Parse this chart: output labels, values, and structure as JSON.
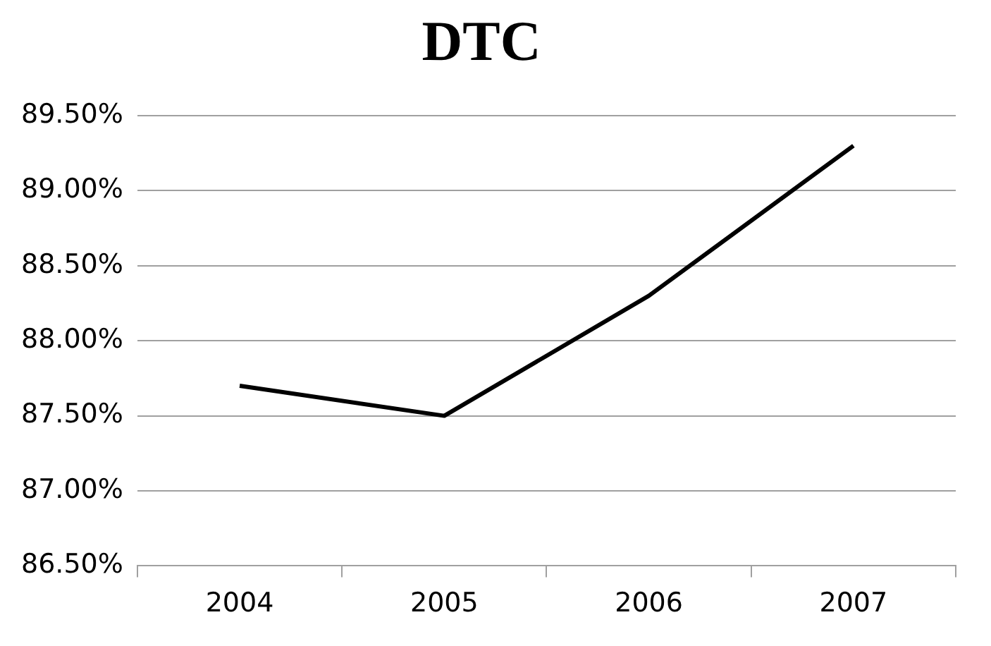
{
  "chart_data": {
    "type": "line",
    "title": "DTC",
    "categories": [
      "2004",
      "2005",
      "2006",
      "2007"
    ],
    "series": [
      {
        "color": "#000000",
        "values": [
          87.7,
          87.5,
          88.3,
          89.3
        ]
      }
    ],
    "ylim": [
      86.5,
      89.5
    ],
    "yticks": [
      {
        "value": 86.5,
        "label": "86.50%"
      },
      {
        "value": 87,
        "label": "87.00%"
      },
      {
        "value": 87.5,
        "label": "87.50%"
      },
      {
        "value": 88,
        "label": "88.00%"
      },
      {
        "value": 88.5,
        "label": "88.50%"
      },
      {
        "value": 89,
        "label": "89.00%"
      },
      {
        "value": 89.5,
        "label": "89.50%"
      }
    ],
    "grid": "y",
    "legend": false,
    "marker": "none",
    "line_style": "solid"
  }
}
